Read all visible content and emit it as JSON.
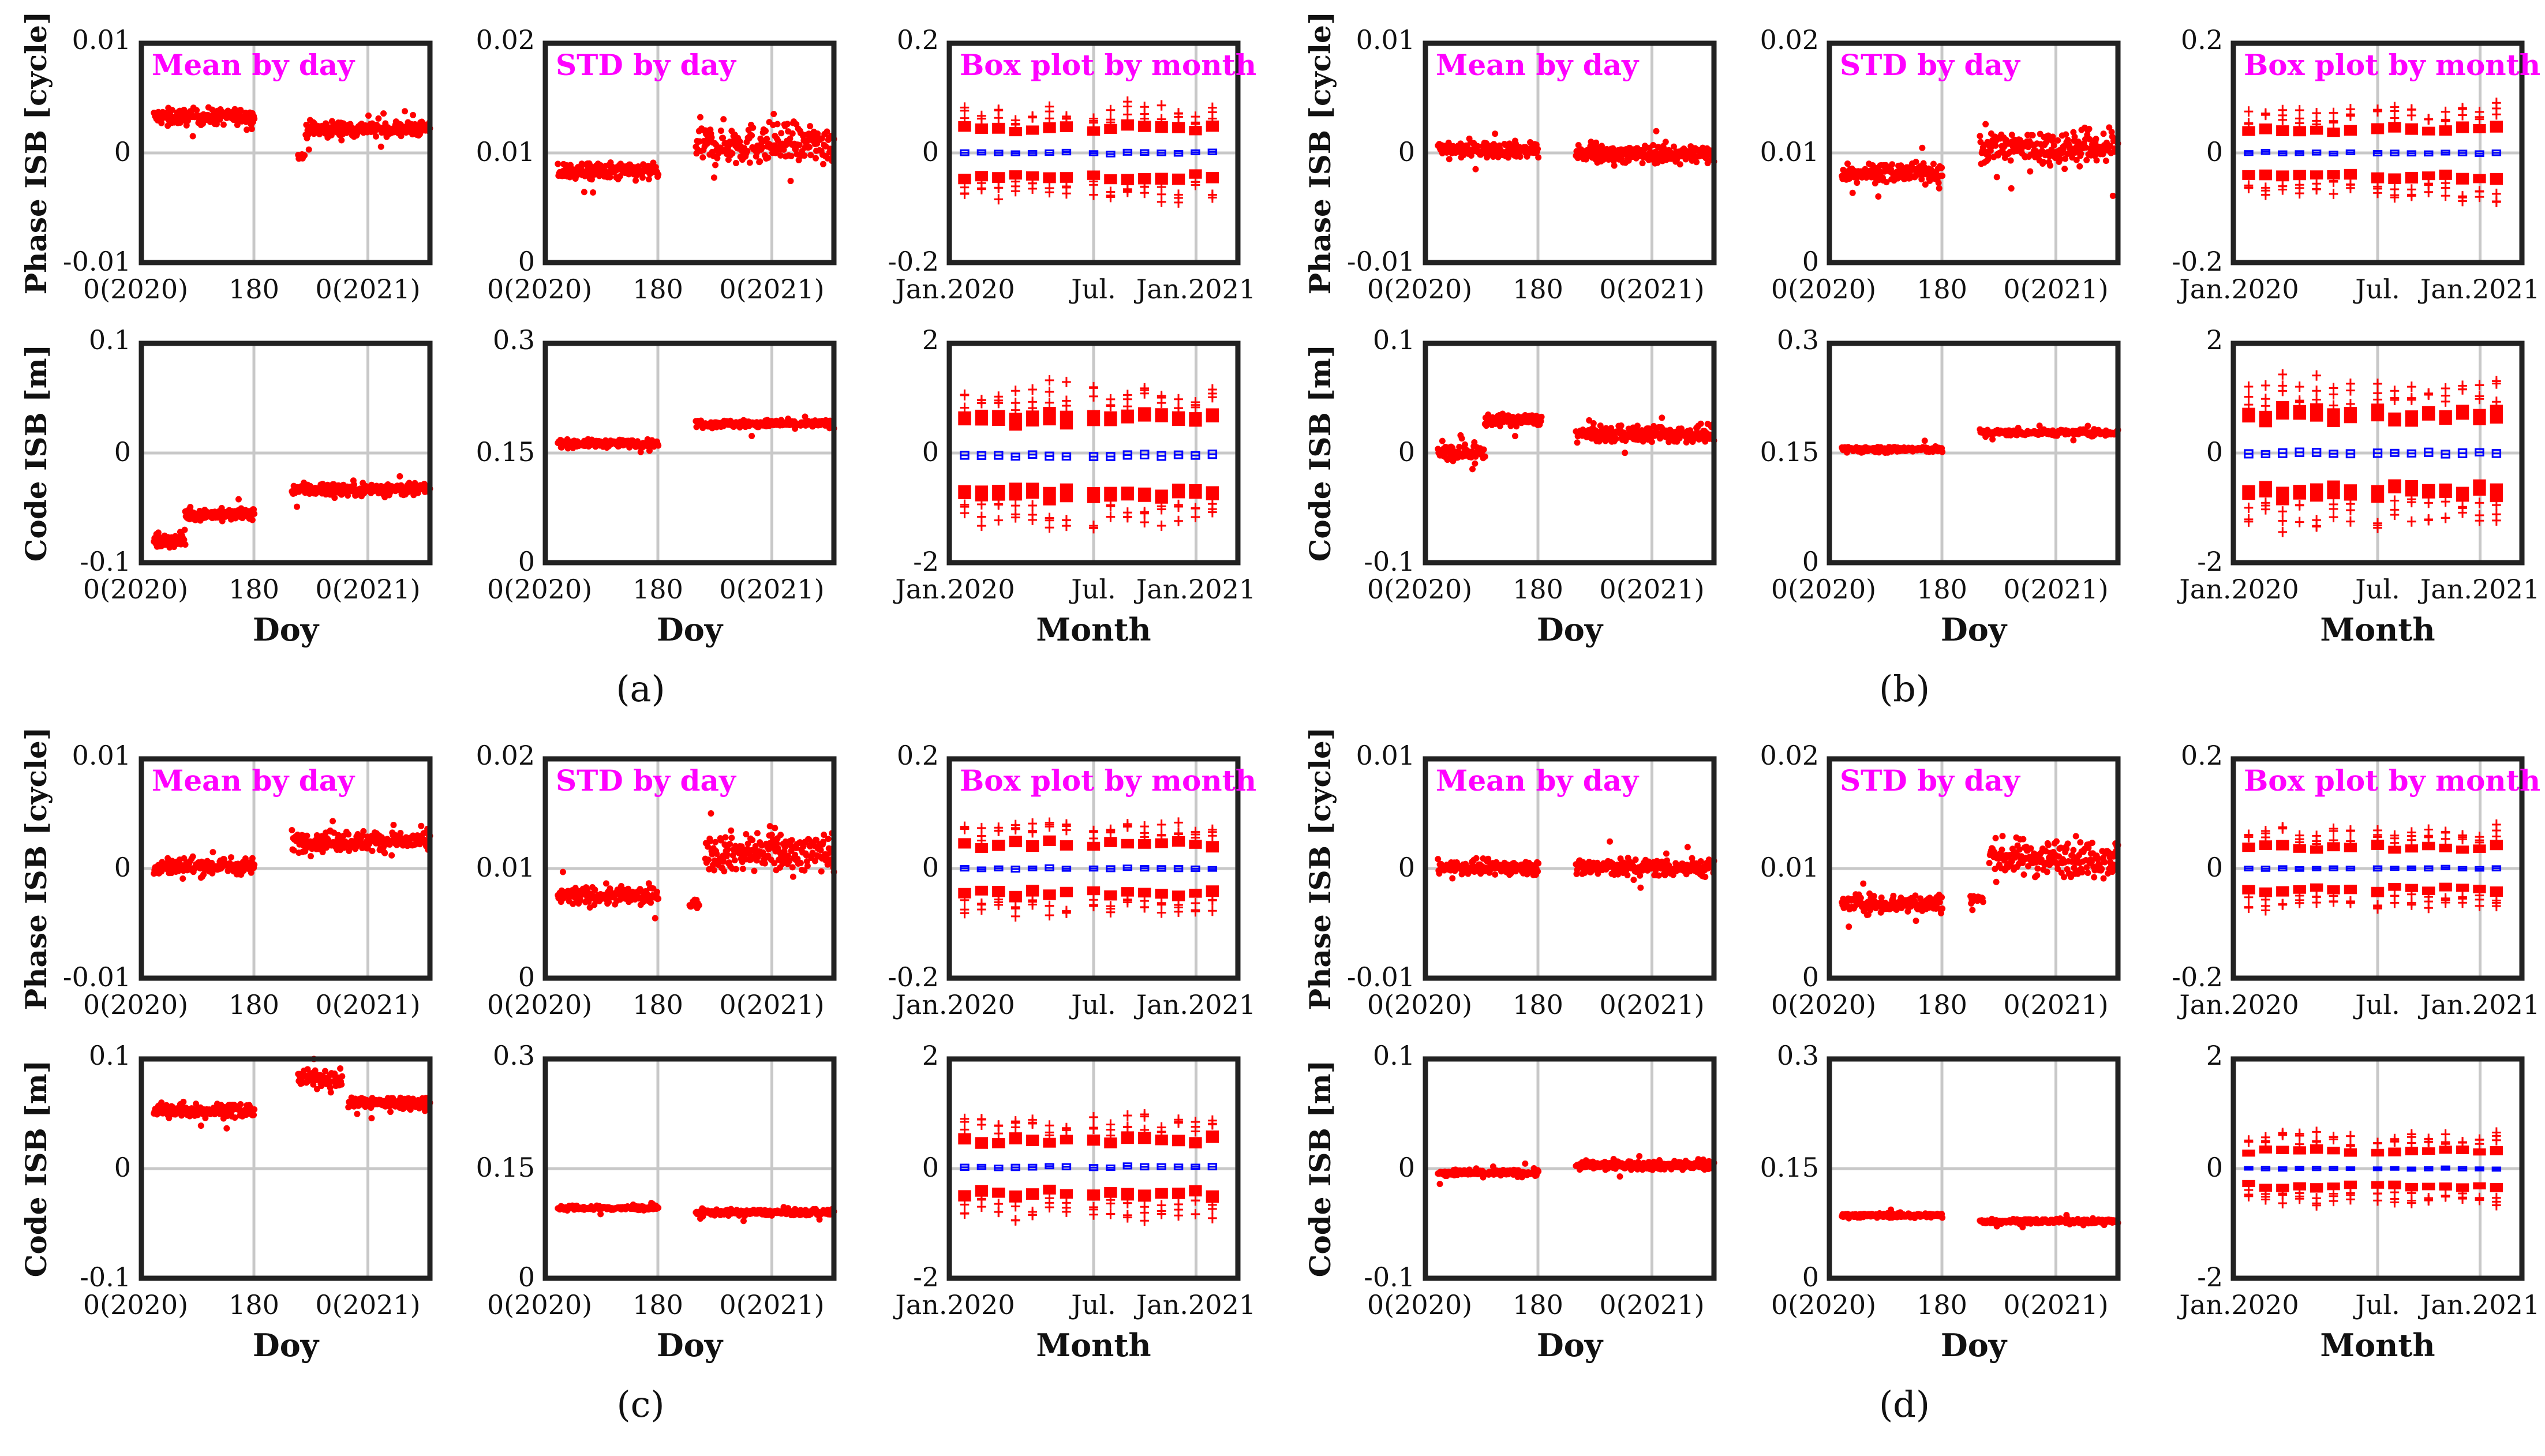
{
  "figure": {
    "panel_labels": [
      "(a)",
      "(b)",
      "(c)",
      "(d)"
    ],
    "title_color": "#ff00ff",
    "marker_color": "#ff0000",
    "box_color": "#0000ff",
    "grid_color": "#c8c8c8"
  },
  "chart_data": [
    {
      "group": "a",
      "panel": "phase-mean",
      "type": "scatter",
      "title": "Mean by day",
      "ylabel": "Phase ISB [cycle]",
      "xlabel": "",
      "x_ticks": [
        "0(2020)",
        "180",
        "0(2021)"
      ],
      "y_ticks": [
        "0.01",
        "0",
        "-0.01"
      ],
      "ylim": [
        -0.01,
        0.01
      ],
      "xlim": [
        0,
        460
      ],
      "segments": [
        {
          "x": [
            20,
            180
          ],
          "level": 0.0033,
          "noise": 0.0007
        },
        {
          "x": [
            250,
            260
          ],
          "level": -0.0003,
          "noise": 0.0004
        },
        {
          "x": [
            262,
            460
          ],
          "level": 0.0022,
          "noise": 0.0007
        }
      ]
    },
    {
      "group": "a",
      "panel": "phase-std",
      "type": "scatter",
      "title": "STD by day",
      "ylabel": "",
      "xlabel": "",
      "x_ticks": [
        "0(2020)",
        "180",
        "0(2021)"
      ],
      "y_ticks": [
        "0.02",
        "0.01",
        "0"
      ],
      "ylim": [
        0,
        0.02
      ],
      "xlim": [
        0,
        460
      ],
      "segments": [
        {
          "x": [
            20,
            180
          ],
          "level": 0.0083,
          "noise": 0.0008
        },
        {
          "x": [
            240,
            460
          ],
          "level": 0.0108,
          "noise": 0.0018
        }
      ]
    },
    {
      "group": "a",
      "panel": "phase-box",
      "type": "box",
      "title": "Box plot by month",
      "ylabel": "",
      "xlabel": "",
      "x_ticks": [
        "Jan.2020",
        "Jul.",
        "Jan.2021"
      ],
      "y_ticks": [
        "0.2",
        "0",
        "-0.2"
      ],
      "ylim": [
        -0.2,
        0.2
      ],
      "months": 15,
      "gap_after": 7,
      "median": 0.0,
      "q_spread": 0.035,
      "whisker": 0.05
    },
    {
      "group": "a",
      "panel": "code-mean",
      "type": "scatter",
      "title": "",
      "ylabel": "Code ISB [m]",
      "xlabel": "Doy",
      "x_ticks": [
        "0(2020)",
        "180",
        "0(2021)"
      ],
      "y_ticks": [
        "0.1",
        "0",
        "-0.1"
      ],
      "ylim": [
        -0.1,
        0.1
      ],
      "xlim": [
        0,
        460
      ],
      "segments": [
        {
          "x": [
            20,
            70
          ],
          "level": -0.08,
          "noise": 0.006
        },
        {
          "x": [
            70,
            180
          ],
          "level": -0.056,
          "noise": 0.005
        },
        {
          "x": [
            240,
            460
          ],
          "level": -0.033,
          "noise": 0.006
        }
      ]
    },
    {
      "group": "a",
      "panel": "code-std",
      "type": "scatter",
      "title": "",
      "ylabel": "",
      "xlabel": "Doy",
      "x_ticks": [
        "0(2020)",
        "180",
        "0(2021)"
      ],
      "y_ticks": [
        "0.3",
        "0.15",
        "0"
      ],
      "ylim": [
        0,
        0.3
      ],
      "xlim": [
        0,
        460
      ],
      "segments": [
        {
          "x": [
            20,
            180
          ],
          "level": 0.163,
          "noise": 0.005
        },
        {
          "x": [
            240,
            460
          ],
          "level": 0.19,
          "noise": 0.005
        }
      ]
    },
    {
      "group": "a",
      "panel": "code-box",
      "type": "box",
      "title": "",
      "ylabel": "",
      "xlabel": "Month",
      "x_ticks": [
        "Jan.2020",
        "Jul.",
        "Jan.2021"
      ],
      "y_ticks": [
        "2",
        "0",
        "-2"
      ],
      "ylim": [
        -2,
        2
      ],
      "months": 15,
      "gap_after": 7,
      "median": -0.05,
      "q_spread": 0.55,
      "whisker": 0.8
    },
    {
      "group": "b",
      "panel": "phase-mean",
      "type": "scatter",
      "title": "Mean by day",
      "ylabel": "Phase ISB [cycle]",
      "xlabel": "",
      "x_ticks": [
        "0(2020)",
        "180",
        "0(2021)"
      ],
      "y_ticks": [
        "0.01",
        "0",
        "-0.01"
      ],
      "ylim": [
        -0.01,
        0.01
      ],
      "xlim": [
        0,
        460
      ],
      "segments": [
        {
          "x": [
            20,
            180
          ],
          "level": 0.0003,
          "noise": 0.0007
        },
        {
          "x": [
            240,
            460
          ],
          "level": -0.0001,
          "noise": 0.0008
        }
      ]
    },
    {
      "group": "b",
      "panel": "phase-std",
      "type": "scatter",
      "title": "STD by day",
      "ylabel": "",
      "xlabel": "",
      "x_ticks": [
        "0(2020)",
        "180",
        "0(2021)"
      ],
      "y_ticks": [
        "0.02",
        "0.01",
        "0"
      ],
      "ylim": [
        0,
        0.02
      ],
      "xlim": [
        0,
        460
      ],
      "segments": [
        {
          "x": [
            20,
            180
          ],
          "level": 0.0082,
          "noise": 0.0008
        },
        {
          "x": [
            240,
            460
          ],
          "level": 0.0105,
          "noise": 0.0016
        }
      ]
    },
    {
      "group": "b",
      "panel": "phase-box",
      "type": "box",
      "title": "Box plot by month",
      "ylabel": "",
      "xlabel": "",
      "x_ticks": [
        "Jan.2020",
        "Jul.",
        "Jan.2021"
      ],
      "y_ticks": [
        "0.2",
        "0",
        "-0.2"
      ],
      "ylim": [
        -0.2,
        0.2
      ],
      "months": 15,
      "gap_after": 7,
      "median": 0.0,
      "q_spread": 0.035,
      "whisker": 0.05
    },
    {
      "group": "b",
      "panel": "code-mean",
      "type": "scatter",
      "title": "",
      "ylabel": "Code ISB [m]",
      "xlabel": "Doy",
      "x_ticks": [
        "0(2020)",
        "180",
        "0(2021)"
      ],
      "y_ticks": [
        "0.1",
        "0",
        "-0.1"
      ],
      "ylim": [
        -0.1,
        0.1
      ],
      "xlim": [
        0,
        460
      ],
      "segments": [
        {
          "x": [
            20,
            95
          ],
          "level": 0.0,
          "noise": 0.007
        },
        {
          "x": [
            95,
            185
          ],
          "level": 0.03,
          "noise": 0.005
        },
        {
          "x": [
            240,
            460
          ],
          "level": 0.017,
          "noise": 0.007
        }
      ]
    },
    {
      "group": "b",
      "panel": "code-std",
      "type": "scatter",
      "title": "",
      "ylabel": "",
      "xlabel": "Doy",
      "x_ticks": [
        "0(2020)",
        "180",
        "0(2021)"
      ],
      "y_ticks": [
        "0.3",
        "0.15",
        "0"
      ],
      "ylim": [
        0,
        0.3
      ],
      "xlim": [
        0,
        460
      ],
      "segments": [
        {
          "x": [
            20,
            180
          ],
          "level": 0.155,
          "noise": 0.004
        },
        {
          "x": [
            240,
            460
          ],
          "level": 0.178,
          "noise": 0.004
        }
      ]
    },
    {
      "group": "b",
      "panel": "code-box",
      "type": "box",
      "title": "",
      "ylabel": "",
      "xlabel": "Month",
      "x_ticks": [
        "Jan.2020",
        "Jul.",
        "Jan.2021"
      ],
      "y_ticks": [
        "2",
        "0",
        "-2"
      ],
      "ylim": [
        -2,
        2
      ],
      "months": 15,
      "gap_after": 7,
      "median": 0.0,
      "q_spread": 0.55,
      "whisker": 0.8
    },
    {
      "group": "c",
      "panel": "phase-mean",
      "type": "scatter",
      "title": "Mean by day",
      "ylabel": "Phase ISB [cycle]",
      "xlabel": "",
      "x_ticks": [
        "0(2020)",
        "180",
        "0(2021)"
      ],
      "y_ticks": [
        "0.01",
        "0",
        "-0.01"
      ],
      "ylim": [
        -0.01,
        0.01
      ],
      "xlim": [
        0,
        460
      ],
      "segments": [
        {
          "x": [
            20,
            180
          ],
          "level": 0.0002,
          "noise": 0.0008
        },
        {
          "x": [
            240,
            460
          ],
          "level": 0.0025,
          "noise": 0.0009
        }
      ]
    },
    {
      "group": "c",
      "panel": "phase-std",
      "type": "scatter",
      "title": "STD by day",
      "ylabel": "",
      "xlabel": "",
      "x_ticks": [
        "0(2020)",
        "180",
        "0(2021)"
      ],
      "y_ticks": [
        "0.02",
        "0.01",
        "0"
      ],
      "ylim": [
        0,
        0.02
      ],
      "xlim": [
        0,
        460
      ],
      "segments": [
        {
          "x": [
            20,
            180
          ],
          "level": 0.0075,
          "noise": 0.0008
        },
        {
          "x": [
            230,
            245
          ],
          "level": 0.0068,
          "noise": 0.0004
        },
        {
          "x": [
            255,
            460
          ],
          "level": 0.0115,
          "noise": 0.0017
        }
      ]
    },
    {
      "group": "c",
      "panel": "phase-box",
      "type": "box",
      "title": "Box plot by month",
      "ylabel": "",
      "xlabel": "",
      "x_ticks": [
        "Jan.2020",
        "Jul.",
        "Jan.2021"
      ],
      "y_ticks": [
        "0.2",
        "0",
        "-0.2"
      ],
      "ylim": [
        -0.2,
        0.2
      ],
      "months": 15,
      "gap_after": 7,
      "median": 0.0,
      "q_spread": 0.035,
      "whisker": 0.05
    },
    {
      "group": "c",
      "panel": "code-mean",
      "type": "scatter",
      "title": "",
      "ylabel": "Code ISB [m]",
      "xlabel": "Doy",
      "x_ticks": [
        "0(2020)",
        "180",
        "0(2021)"
      ],
      "y_ticks": [
        "0.1",
        "0",
        "-0.1"
      ],
      "ylim": [
        -0.1,
        0.1
      ],
      "xlim": [
        0,
        460
      ],
      "segments": [
        {
          "x": [
            20,
            180
          ],
          "level": 0.053,
          "noise": 0.006
        },
        {
          "x": [
            250,
            320
          ],
          "level": 0.082,
          "noise": 0.007
        },
        {
          "x": [
            330,
            460
          ],
          "level": 0.06,
          "noise": 0.006
        }
      ]
    },
    {
      "group": "c",
      "panel": "code-std",
      "type": "scatter",
      "title": "",
      "ylabel": "",
      "xlabel": "Doy",
      "x_ticks": [
        "0(2020)",
        "180",
        "0(2021)"
      ],
      "y_ticks": [
        "0.3",
        "0.15",
        "0"
      ],
      "ylim": [
        0,
        0.3
      ],
      "xlim": [
        0,
        460
      ],
      "segments": [
        {
          "x": [
            20,
            180
          ],
          "level": 0.096,
          "noise": 0.003
        },
        {
          "x": [
            240,
            460
          ],
          "level": 0.09,
          "noise": 0.004
        }
      ]
    },
    {
      "group": "c",
      "panel": "code-box",
      "type": "box",
      "title": "",
      "ylabel": "",
      "xlabel": "Month",
      "x_ticks": [
        "Jan.2020",
        "Jul.",
        "Jan.2021"
      ],
      "y_ticks": [
        "2",
        "0",
        "-2"
      ],
      "ylim": [
        -2,
        2
      ],
      "months": 15,
      "gap_after": 7,
      "median": 0.03,
      "q_spread": 0.38,
      "whisker": 0.55
    },
    {
      "group": "d",
      "panel": "phase-mean",
      "type": "scatter",
      "title": "Mean by day",
      "ylabel": "Phase ISB [cycle]",
      "xlabel": "",
      "x_ticks": [
        "0(2020)",
        "180",
        "0(2021)"
      ],
      "y_ticks": [
        "0.01",
        "0",
        "-0.01"
      ],
      "ylim": [
        -0.01,
        0.01
      ],
      "xlim": [
        0,
        460
      ],
      "segments": [
        {
          "x": [
            20,
            180
          ],
          "level": 0.0001,
          "noise": 0.0006
        },
        {
          "x": [
            240,
            460
          ],
          "level": 0.0001,
          "noise": 0.0008
        }
      ]
    },
    {
      "group": "d",
      "panel": "phase-std",
      "type": "scatter",
      "title": "STD by day",
      "ylabel": "",
      "xlabel": "",
      "x_ticks": [
        "0(2020)",
        "180",
        "0(2021)"
      ],
      "y_ticks": [
        "0.02",
        "0.01",
        "0"
      ],
      "ylim": [
        0,
        0.02
      ],
      "xlim": [
        0,
        460
      ],
      "segments": [
        {
          "x": [
            20,
            180
          ],
          "level": 0.0068,
          "noise": 0.0008
        },
        {
          "x": [
            225,
            245
          ],
          "level": 0.0072,
          "noise": 0.0005
        },
        {
          "x": [
            255,
            460
          ],
          "level": 0.011,
          "noise": 0.0016
        }
      ]
    },
    {
      "group": "d",
      "panel": "phase-box",
      "type": "box",
      "title": "Box plot by month",
      "ylabel": "",
      "xlabel": "",
      "x_ticks": [
        "Jan.2020",
        "Jul.",
        "Jan.2021"
      ],
      "y_ticks": [
        "0.2",
        "0",
        "-0.2"
      ],
      "ylim": [
        -0.2,
        0.2
      ],
      "months": 15,
      "gap_after": 7,
      "median": 0.0,
      "q_spread": 0.03,
      "whisker": 0.045
    },
    {
      "group": "d",
      "panel": "code-mean",
      "type": "scatter",
      "title": "",
      "ylabel": "Code ISB [m]",
      "xlabel": "Doy",
      "x_ticks": [
        "0(2020)",
        "180",
        "0(2021)"
      ],
      "y_ticks": [
        "0.1",
        "0",
        "-0.1"
      ],
      "ylim": [
        -0.1,
        0.1
      ],
      "xlim": [
        0,
        460
      ],
      "segments": [
        {
          "x": [
            20,
            180
          ],
          "level": -0.004,
          "noise": 0.003
        },
        {
          "x": [
            240,
            460
          ],
          "level": 0.003,
          "noise": 0.004
        }
      ]
    },
    {
      "group": "d",
      "panel": "code-std",
      "type": "scatter",
      "title": "",
      "ylabel": "",
      "xlabel": "Doy",
      "x_ticks": [
        "0(2020)",
        "180",
        "0(2021)"
      ],
      "y_ticks": [
        "0.3",
        "0.15",
        "0"
      ],
      "ylim": [
        0,
        0.3
      ],
      "xlim": [
        0,
        460
      ],
      "segments": [
        {
          "x": [
            20,
            180
          ],
          "level": 0.086,
          "noise": 0.003
        },
        {
          "x": [
            240,
            460
          ],
          "level": 0.078,
          "noise": 0.003
        }
      ]
    },
    {
      "group": "d",
      "panel": "code-box",
      "type": "box",
      "title": "",
      "ylabel": "",
      "xlabel": "Month",
      "x_ticks": [
        "Jan.2020",
        "Jul.",
        "Jan.2021"
      ],
      "y_ticks": [
        "2",
        "0",
        "-2"
      ],
      "ylim": [
        -2,
        2
      ],
      "months": 15,
      "gap_after": 7,
      "median": 0.0,
      "q_spread": 0.25,
      "whisker": 0.4
    }
  ]
}
